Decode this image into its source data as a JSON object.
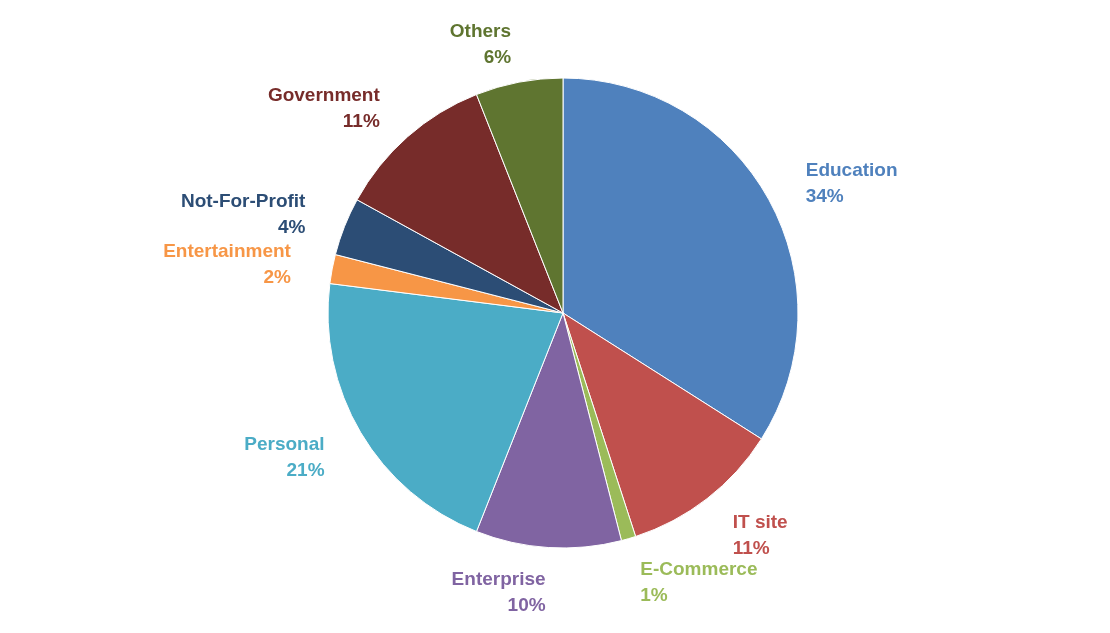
{
  "chart_data": {
    "type": "pie",
    "categories": [
      "Education",
      "IT site",
      "E-Commerce",
      "Enterprise",
      "Personal",
      "Entertainment",
      "Not-For-Profit",
      "Government",
      "Others"
    ],
    "values": [
      34,
      11,
      1,
      10,
      21,
      2,
      4,
      11,
      6
    ],
    "colors": [
      "#4f81bd",
      "#c0504d",
      "#9bbb59",
      "#8064a2",
      "#4bacc6",
      "#f79646",
      "#2c4d75",
      "#772c2a",
      "#5f7530"
    ],
    "value_labels": [
      "34%",
      "11%",
      "1%",
      "10%",
      "21%",
      "2%",
      "4%",
      "11%",
      "6%"
    ],
    "legend": false
  }
}
